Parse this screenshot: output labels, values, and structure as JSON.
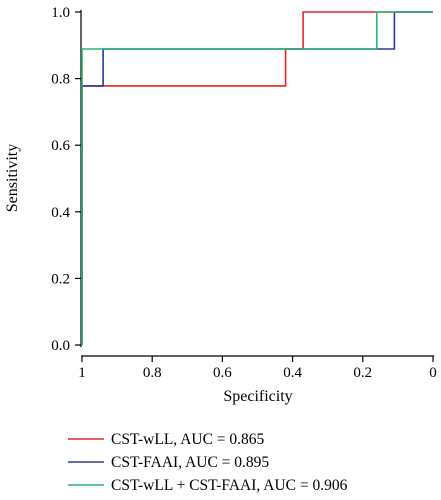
{
  "chart_data": {
    "type": "line",
    "xlabel": "Specificity",
    "ylabel": "Sensitivity",
    "xlim": [
      1,
      0
    ],
    "ylim": [
      0,
      1
    ],
    "x_ticks": [
      "1",
      "0.8",
      "0.6",
      "0.4",
      "0.2",
      "0"
    ],
    "y_ticks": [
      "0.0",
      "0.2",
      "0.4",
      "0.6",
      "0.8",
      "1.0"
    ],
    "grid": false,
    "legend_position": "bottom",
    "series": [
      {
        "name": "CST-wLL, AUC = 0.865",
        "color": "#e8232a",
        "points": [
          [
            1,
            0
          ],
          [
            1,
            0.778
          ],
          [
            0.42,
            0.778
          ],
          [
            0.42,
            0.889
          ],
          [
            0.37,
            0.889
          ],
          [
            0.37,
            1.0
          ],
          [
            0,
            1.0
          ]
        ]
      },
      {
        "name": "CST-FAAI, AUC = 0.895",
        "color": "#2b3a9c",
        "points": [
          [
            1,
            0
          ],
          [
            1,
            0.778
          ],
          [
            0.94,
            0.778
          ],
          [
            0.94,
            0.889
          ],
          [
            0.11,
            0.889
          ],
          [
            0.11,
            1.0
          ],
          [
            0,
            1.0
          ]
        ]
      },
      {
        "name": "CST-wLL + CST-FAAI, AUC = 0.906",
        "color": "#2bb673",
        "points": [
          [
            1,
            0
          ],
          [
            1,
            0.889
          ],
          [
            0.16,
            0.889
          ],
          [
            0.16,
            1.0
          ],
          [
            0,
            1.0
          ]
        ]
      }
    ]
  }
}
